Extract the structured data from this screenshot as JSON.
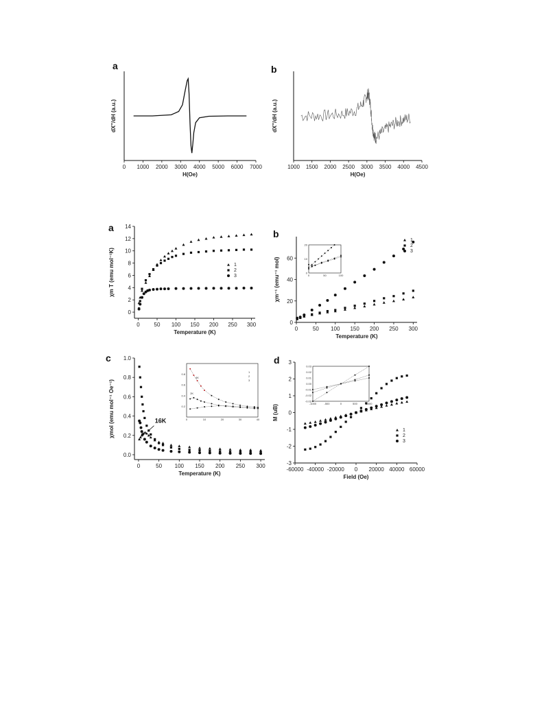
{
  "chart_data": [
    {
      "id": "epr-a",
      "type": "line",
      "panel_label": "a",
      "xlabel": "H(Oe)",
      "ylabel": "dX''/dH (a.u.)",
      "xlim": [
        0,
        7000
      ],
      "xticks": [
        "0",
        "1000",
        "2000",
        "3000",
        "4000",
        "5000",
        "6000",
        "7000"
      ],
      "series": [
        {
          "x": [
            500,
            1500,
            2500,
            2900,
            3100,
            3250,
            3350,
            3400,
            3450,
            3500,
            3550,
            3600,
            3650,
            3700,
            3800,
            4000,
            4500,
            5500,
            6500
          ],
          "values": [
            0,
            0,
            0.03,
            0.12,
            0.3,
            0.7,
            0.95,
            1.0,
            0.6,
            -0.2,
            -0.8,
            -1.0,
            -0.75,
            -0.45,
            -0.18,
            -0.05,
            -0.01,
            0,
            0
          ]
        }
      ]
    },
    {
      "id": "epr-b",
      "type": "line",
      "panel_label": "b",
      "xlabel": "H(Oe)",
      "ylabel": "dX''/dH (a.u.)",
      "xlim": [
        1000,
        4500
      ],
      "xticks": [
        "1000",
        "1500",
        "2000",
        "2500",
        "3000",
        "3500",
        "4000",
        "4500"
      ],
      "series": [
        {
          "x": [
            1200,
            1600,
            2000,
            2400,
            2700,
            2900,
            3000,
            3050,
            3100,
            3150,
            3200,
            3250,
            3400,
            3600,
            3800,
            4000,
            4200
          ],
          "values": [
            0,
            0,
            0.02,
            0.06,
            0.15,
            0.35,
            0.55,
            0.6,
            0.25,
            -0.3,
            -0.55,
            -0.6,
            -0.45,
            -0.3,
            -0.18,
            -0.1,
            -0.05
          ]
        }
      ]
    },
    {
      "id": "chiT-a",
      "type": "scatter",
      "panel_label": "a",
      "xlabel": "Temperature (K)",
      "ylabel": "χm T (emu mol⁻¹K)",
      "xlim": [
        -10,
        310
      ],
      "ylim": [
        -1,
        14
      ],
      "xticks": [
        0,
        50,
        100,
        150,
        200,
        250,
        300
      ],
      "yticks": [
        0,
        2,
        4,
        6,
        8,
        10,
        12,
        14
      ],
      "legend": [
        "1",
        "2",
        "3"
      ],
      "series": [
        {
          "name": "1",
          "marker": "triangle",
          "x": [
            2,
            5,
            10,
            20,
            30,
            40,
            50,
            60,
            70,
            80,
            90,
            100,
            120,
            140,
            160,
            180,
            200,
            220,
            240,
            260,
            280,
            300
          ],
          "values": [
            1.5,
            2.4,
            3.5,
            4.8,
            5.9,
            6.9,
            7.8,
            8.5,
            9.1,
            9.6,
            10.0,
            10.4,
            11.0,
            11.5,
            11.8,
            12.0,
            12.2,
            12.3,
            12.4,
            12.5,
            12.6,
            12.7
          ]
        },
        {
          "name": "2",
          "marker": "square",
          "x": [
            2,
            5,
            10,
            20,
            30,
            40,
            50,
            60,
            70,
            80,
            90,
            100,
            120,
            140,
            160,
            180,
            200,
            220,
            240,
            260,
            280,
            300
          ],
          "values": [
            0.6,
            1.8,
            3.8,
            5.2,
            6.2,
            7.0,
            7.6,
            8.0,
            8.4,
            8.7,
            9.0,
            9.2,
            9.5,
            9.7,
            9.8,
            9.9,
            10.0,
            10.05,
            10.1,
            10.15,
            10.2,
            10.2
          ]
        },
        {
          "name": "3",
          "marker": "circle",
          "x": [
            2,
            5,
            10,
            15,
            20,
            25,
            30,
            40,
            50,
            60,
            70,
            80,
            100,
            120,
            140,
            160,
            180,
            200,
            220,
            240,
            260,
            280,
            300
          ],
          "values": [
            0.5,
            1.3,
            2.4,
            3.0,
            3.3,
            3.5,
            3.6,
            3.7,
            3.75,
            3.8,
            3.8,
            3.82,
            3.85,
            3.86,
            3.87,
            3.88,
            3.88,
            3.9,
            3.9,
            3.9,
            3.9,
            3.92,
            3.93
          ]
        }
      ]
    },
    {
      "id": "invchi-b",
      "type": "scatter",
      "panel_label": "b",
      "xlabel": "Temperature (K)",
      "ylabel": "χm⁻¹ (emu⁻¹ mol)",
      "xlim": [
        0,
        310
      ],
      "ylim": [
        0,
        80
      ],
      "xticks": [
        0,
        50,
        100,
        150,
        200,
        250,
        300
      ],
      "yticks": [
        0,
        20,
        40,
        60
      ],
      "legend": [
        "1",
        "2",
        "3"
      ],
      "series": [
        {
          "name": "1",
          "marker": "triangle",
          "x": [
            2,
            10,
            20,
            40,
            60,
            80,
            100,
            125,
            150,
            175,
            200,
            225,
            250,
            275,
            300
          ],
          "values": [
            3.5,
            4.5,
            5.5,
            7.0,
            8.5,
            9.5,
            10.5,
            12.0,
            13.5,
            15.0,
            16.8,
            18.5,
            20.0,
            21.5,
            23.5
          ]
        },
        {
          "name": "2",
          "marker": "square",
          "x": [
            2,
            10,
            20,
            40,
            60,
            80,
            100,
            125,
            150,
            175,
            200,
            225,
            250,
            275,
            300
          ],
          "values": [
            3.0,
            4.2,
            5.5,
            7.5,
            9.0,
            10.5,
            11.5,
            13.5,
            15.5,
            17.5,
            20.0,
            22.5,
            24.5,
            27.0,
            29.5
          ]
        },
        {
          "name": "3",
          "marker": "circle",
          "x": [
            2,
            10,
            20,
            40,
            60,
            80,
            100,
            125,
            150,
            175,
            200,
            225,
            250,
            275,
            300
          ],
          "values": [
            4.0,
            5.0,
            7.0,
            11.5,
            16.0,
            20.5,
            25.5,
            31.5,
            37.5,
            43.5,
            49.5,
            56.0,
            62.0,
            68.5,
            75.0
          ]
        }
      ],
      "inset": {
        "xlim": [
          0,
          100
        ],
        "ylim": [
          0,
          20
        ],
        "xticks": [
          "0",
          "50",
          "100"
        ],
        "yticks": [
          "0",
          "10",
          "20"
        ],
        "series": [
          {
            "x": [
              0,
              10,
              20,
              30,
              40,
              50,
              60,
              70,
              80
            ],
            "values": [
              4,
              6,
              8,
              10,
              12,
              14,
              16,
              18,
              20
            ]
          },
          {
            "x": [
              0,
              10,
              20,
              40,
              60,
              80,
              100
            ],
            "values": [
              6,
              5,
              5.5,
              7,
              8.5,
              10,
              11.5
            ]
          },
          {
            "x": [
              0,
              10,
              20,
              40,
              60,
              80,
              100
            ],
            "values": [
              3,
              4.5,
              5.5,
              7.5,
              9,
              10.5,
              12.5
            ]
          }
        ]
      }
    },
    {
      "id": "chiM-c",
      "type": "scatter",
      "panel_label": "c",
      "xlabel": "Temperature (K)",
      "ylabel": "χmol (emu mol⁻¹ Oe⁻¹)",
      "xlim": [
        -10,
        310
      ],
      "ylim": [
        -0.05,
        1.0
      ],
      "xticks": [
        0,
        50,
        100,
        150,
        200,
        250,
        300
      ],
      "yticks": [
        "0.0",
        "0.2",
        "0.4",
        "0.6",
        "0.8",
        "1.0"
      ],
      "annotation": "16K",
      "series": [
        {
          "name": "1",
          "marker": "triangle",
          "x": [
            2,
            5,
            8,
            12,
            16,
            20,
            25,
            30,
            40,
            50,
            60,
            80,
            100,
            125,
            150,
            175,
            200,
            225,
            250,
            275,
            300
          ],
          "values": [
            0.16,
            0.18,
            0.2,
            0.22,
            0.23,
            0.22,
            0.2,
            0.18,
            0.15,
            0.13,
            0.12,
            0.1,
            0.09,
            0.08,
            0.07,
            0.065,
            0.06,
            0.055,
            0.05,
            0.05,
            0.045
          ]
        },
        {
          "name": "2",
          "marker": "square",
          "x": [
            2,
            4,
            6,
            8,
            10,
            12,
            15,
            20,
            25,
            30,
            40,
            50,
            60,
            80,
            100,
            125,
            150,
            175,
            200,
            225,
            250,
            275,
            300
          ],
          "values": [
            0.91,
            0.8,
            0.7,
            0.6,
            0.52,
            0.45,
            0.38,
            0.3,
            0.25,
            0.21,
            0.16,
            0.12,
            0.1,
            0.075,
            0.06,
            0.05,
            0.045,
            0.04,
            0.035,
            0.03,
            0.03,
            0.028,
            0.025
          ]
        },
        {
          "name": "3",
          "marker": "circle",
          "x": [
            2,
            4,
            6,
            8,
            10,
            15,
            20,
            30,
            40,
            50,
            60,
            80,
            100,
            125,
            150,
            175,
            200,
            225,
            250,
            275,
            300
          ],
          "values": [
            0.35,
            0.33,
            0.28,
            0.24,
            0.21,
            0.16,
            0.13,
            0.09,
            0.07,
            0.055,
            0.045,
            0.035,
            0.03,
            0.025,
            0.02,
            0.018,
            0.016,
            0.015,
            0.014,
            0.013,
            0.012
          ]
        }
      ],
      "inset": {
        "xlim": [
          0,
          40
        ],
        "ylim": [
          0.0,
          1.0
        ],
        "xticks": [
          "0",
          "10",
          "20",
          "30",
          "40"
        ],
        "yticks": [
          "0.2",
          "0.4",
          "0.6",
          "0.8"
        ],
        "legend": [
          "1",
          "2",
          "3"
        ],
        "annotations": [
          "4K",
          "2K"
        ],
        "series": [
          {
            "x": [
              2,
              4,
              6,
              8,
              10,
              14,
              18,
              22,
              26,
              30,
              34,
              38,
              40
            ],
            "values": [
              0.9,
              0.78,
              0.68,
              0.58,
              0.5,
              0.4,
              0.33,
              0.28,
              0.25,
              0.22,
              0.2,
              0.19,
              0.18
            ]
          },
          {
            "x": [
              2,
              4,
              6,
              8,
              10,
              14,
              18,
              22,
              26,
              30,
              34,
              38,
              40
            ],
            "values": [
              0.34,
              0.36,
              0.33,
              0.3,
              0.28,
              0.25,
              0.22,
              0.2,
              0.19,
              0.18,
              0.17,
              0.16,
              0.16
            ]
          },
          {
            "x": [
              2,
              6,
              10,
              14,
              18,
              22,
              26,
              30,
              34,
              38,
              40
            ],
            "values": [
              0.15,
              0.17,
              0.19,
              0.2,
              0.21,
              0.21,
              0.2,
              0.19,
              0.18,
              0.17,
              0.17
            ]
          }
        ]
      }
    },
    {
      "id": "MH-d",
      "type": "scatter",
      "panel_label": "d",
      "xlabel": "Field (Oe)",
      "ylabel": "M (uB)",
      "xlim": [
        -60000,
        60000
      ],
      "ylim": [
        -3,
        3
      ],
      "xticks": [
        "-60000",
        "-40000",
        "-20000",
        "0",
        "20000",
        "40000",
        "60000"
      ],
      "yticks": [
        -3,
        -2,
        -1,
        0,
        1,
        2,
        3
      ],
      "legend": [
        "1",
        "2",
        "3"
      ],
      "series": [
        {
          "name": "1",
          "marker": "triangle",
          "x": [
            -50000,
            -45000,
            -40000,
            -35000,
            -30000,
            -25000,
            -20000,
            -15000,
            -10000,
            -5000,
            0,
            5000,
            10000,
            15000,
            20000,
            25000,
            30000,
            35000,
            40000,
            45000,
            50000
          ],
          "values": [
            -0.65,
            -0.6,
            -0.55,
            -0.48,
            -0.42,
            -0.35,
            -0.28,
            -0.21,
            -0.14,
            -0.07,
            0,
            0.07,
            0.14,
            0.21,
            0.28,
            0.35,
            0.42,
            0.48,
            0.55,
            0.6,
            0.65
          ]
        },
        {
          "name": "2",
          "marker": "square",
          "x": [
            -50000,
            -45000,
            -40000,
            -35000,
            -30000,
            -25000,
            -20000,
            -15000,
            -10000,
            -5000,
            0,
            5000,
            10000,
            15000,
            20000,
            25000,
            30000,
            35000,
            40000,
            45000,
            50000
          ],
          "values": [
            -2.2,
            -2.15,
            -2.05,
            -1.9,
            -1.7,
            -1.45,
            -1.15,
            -0.85,
            -0.55,
            -0.27,
            0,
            0.27,
            0.55,
            0.85,
            1.15,
            1.45,
            1.7,
            1.9,
            2.05,
            2.15,
            2.2
          ]
        },
        {
          "name": "3",
          "marker": "circle",
          "x": [
            -50000,
            -45000,
            -40000,
            -35000,
            -30000,
            -25000,
            -20000,
            -15000,
            -10000,
            -5000,
            0,
            5000,
            10000,
            15000,
            20000,
            25000,
            30000,
            35000,
            40000,
            45000,
            50000
          ],
          "values": [
            -0.9,
            -0.83,
            -0.75,
            -0.66,
            -0.57,
            -0.47,
            -0.38,
            -0.28,
            -0.19,
            -0.09,
            0,
            0.09,
            0.19,
            0.28,
            0.38,
            0.47,
            0.57,
            0.66,
            0.75,
            0.83,
            0.9
          ]
        }
      ],
      "inset": {
        "xlim": [
          -1000,
          1000
        ],
        "ylim": [
          -0.03,
          0.03
        ],
        "xticks": [
          "-1000",
          "-500",
          "0",
          "500",
          "1000"
        ],
        "yticks": [
          "-0.03",
          "-0.02",
          "-0.01",
          "0.00",
          "0.01",
          "0.02",
          "0.03"
        ],
        "series": [
          {
            "x": [
              -1000,
              -500,
              0,
              500,
              1000
            ],
            "values": [
              -0.01,
              -0.005,
              0,
              0.005,
              0.01
            ]
          },
          {
            "x": [
              -1000,
              -500,
              0,
              500,
              1000
            ],
            "values": [
              -0.03,
              -0.015,
              0,
              0.015,
              0.03
            ]
          },
          {
            "x": [
              -1000,
              -500,
              0,
              500,
              1000
            ],
            "values": [
              -0.015,
              -0.007,
              0,
              0.007,
              0.015
            ]
          }
        ]
      }
    }
  ],
  "colors": {
    "ink": "#111111",
    "highlight": "#d62728",
    "noise": "#555555"
  }
}
